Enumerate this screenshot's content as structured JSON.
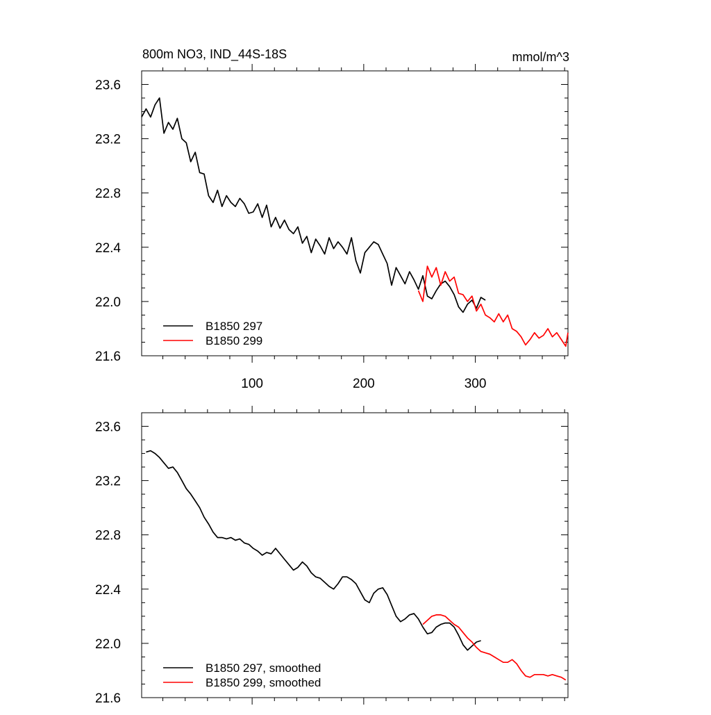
{
  "chart_data": [
    {
      "type": "line",
      "title": "800m NO3, IND_44S-18S",
      "units": "mmol/m^3",
      "xlim": [
        1,
        383
      ],
      "ylim": [
        21.6,
        23.7
      ],
      "xticks": [
        100,
        200,
        300
      ],
      "yticks": [
        21.6,
        22.0,
        22.4,
        22.8,
        23.2,
        23.6
      ],
      "ytick_labels": [
        "21.6",
        "22.0",
        "22.4",
        "22.8",
        "23.2",
        "23.6"
      ],
      "xtick_labels": [
        "100",
        "200",
        "300"
      ],
      "legend_position": "bottom-left",
      "series": [
        {
          "name": "B1850 297",
          "color": "#000000",
          "x": [
            1,
            5,
            9,
            13,
            17,
            21,
            25,
            29,
            33,
            37,
            41,
            45,
            49,
            53,
            57,
            61,
            65,
            69,
            73,
            77,
            81,
            85,
            89,
            93,
            97,
            101,
            105,
            109,
            113,
            117,
            121,
            125,
            129,
            133,
            137,
            141,
            145,
            149,
            153,
            157,
            161,
            165,
            169,
            173,
            177,
            181,
            185,
            189,
            193,
            197,
            201,
            205,
            209,
            213,
            217,
            221,
            225,
            229,
            233,
            237,
            241,
            245,
            249,
            253,
            257,
            261,
            265,
            269,
            273,
            277,
            281,
            285,
            289,
            293,
            297,
            301,
            305,
            309
          ],
          "values": [
            23.36,
            23.42,
            23.36,
            23.45,
            23.5,
            23.24,
            23.32,
            23.27,
            23.35,
            23.2,
            23.17,
            23.03,
            23.1,
            22.95,
            22.94,
            22.78,
            22.73,
            22.82,
            22.7,
            22.78,
            22.73,
            22.7,
            22.76,
            22.72,
            22.65,
            22.66,
            22.72,
            22.62,
            22.71,
            22.55,
            22.62,
            22.54,
            22.6,
            22.53,
            22.5,
            22.55,
            22.43,
            22.48,
            22.36,
            22.46,
            22.41,
            22.35,
            22.47,
            22.39,
            22.44,
            22.4,
            22.35,
            22.47,
            22.3,
            22.21,
            22.36,
            22.4,
            22.44,
            22.42,
            22.35,
            22.28,
            22.12,
            22.25,
            22.19,
            22.13,
            22.22,
            22.16,
            22.09,
            22.19,
            22.04,
            22.02,
            22.08,
            22.13,
            22.15,
            22.11,
            22.05,
            21.96,
            21.92,
            21.98,
            22.01,
            21.95,
            22.03,
            22.01
          ]
        },
        {
          "name": "B1850 299",
          "color": "#ff0000",
          "x": [
            249,
            253,
            257,
            261,
            265,
            269,
            273,
            277,
            281,
            285,
            289,
            293,
            297,
            301,
            305,
            309,
            313,
            317,
            321,
            325,
            329,
            333,
            337,
            341,
            345,
            349,
            353,
            357,
            361,
            365,
            369,
            373,
            377,
            381,
            383
          ],
          "values": [
            22.08,
            22.0,
            22.26,
            22.18,
            22.25,
            22.12,
            22.22,
            22.15,
            22.18,
            22.06,
            22.05,
            22.0,
            22.04,
            21.93,
            21.98,
            21.9,
            21.88,
            21.85,
            21.91,
            21.85,
            21.9,
            21.8,
            21.78,
            21.74,
            21.68,
            21.72,
            21.77,
            21.73,
            21.75,
            21.8,
            21.74,
            21.77,
            21.72,
            21.67,
            21.77
          ]
        }
      ]
    },
    {
      "type": "line",
      "xlim": [
        1,
        383
      ],
      "ylim": [
        21.6,
        23.7
      ],
      "xticks": [
        100,
        200,
        300
      ],
      "yticks": [
        21.6,
        22.0,
        22.4,
        22.8,
        23.2,
        23.6
      ],
      "ytick_labels": [
        "21.6",
        "22.0",
        "22.4",
        "22.8",
        "23.2",
        "23.6"
      ],
      "legend_position": "bottom-left",
      "series": [
        {
          "name": "B1850 297, smoothed",
          "color": "#000000",
          "x": [
            5,
            9,
            13,
            17,
            21,
            25,
            29,
            33,
            37,
            41,
            45,
            49,
            53,
            57,
            61,
            65,
            69,
            73,
            77,
            81,
            85,
            89,
            93,
            97,
            101,
            105,
            109,
            113,
            117,
            121,
            125,
            129,
            133,
            137,
            141,
            145,
            149,
            153,
            157,
            161,
            165,
            169,
            173,
            177,
            181,
            185,
            189,
            193,
            197,
            201,
            205,
            209,
            213,
            217,
            221,
            225,
            229,
            233,
            237,
            241,
            245,
            249,
            253,
            257,
            261,
            265,
            269,
            273,
            277,
            281,
            285,
            289,
            293,
            297,
            301,
            305
          ],
          "values": [
            23.41,
            23.42,
            23.4,
            23.37,
            23.33,
            23.29,
            23.3,
            23.26,
            23.2,
            23.14,
            23.1,
            23.05,
            23.0,
            22.93,
            22.88,
            22.82,
            22.78,
            22.78,
            22.77,
            22.78,
            22.76,
            22.77,
            22.74,
            22.73,
            22.7,
            22.68,
            22.65,
            22.67,
            22.66,
            22.7,
            22.66,
            22.62,
            22.58,
            22.54,
            22.56,
            22.6,
            22.57,
            22.52,
            22.49,
            22.48,
            22.45,
            22.42,
            22.4,
            22.44,
            22.49,
            22.49,
            22.47,
            22.44,
            22.38,
            22.32,
            22.3,
            22.37,
            22.4,
            22.41,
            22.36,
            22.28,
            22.2,
            22.16,
            22.18,
            22.21,
            22.22,
            22.18,
            22.12,
            22.07,
            22.08,
            22.12,
            22.14,
            22.15,
            22.15,
            22.12,
            22.06,
            21.99,
            21.95,
            21.98,
            22.01,
            22.02
          ]
        },
        {
          "name": "B1850 299, smoothed",
          "color": "#ff0000",
          "x": [
            253,
            257,
            261,
            265,
            269,
            273,
            277,
            281,
            285,
            289,
            293,
            297,
            301,
            305,
            309,
            313,
            317,
            321,
            325,
            329,
            333,
            337,
            341,
            345,
            349,
            353,
            357,
            361,
            365,
            369,
            373,
            377,
            381
          ],
          "values": [
            22.14,
            22.17,
            22.2,
            22.21,
            22.21,
            22.2,
            22.17,
            22.14,
            22.12,
            22.08,
            22.04,
            22.01,
            21.97,
            21.94,
            21.93,
            21.92,
            21.9,
            21.88,
            21.86,
            21.86,
            21.88,
            21.85,
            21.8,
            21.76,
            21.75,
            21.77,
            21.77,
            21.77,
            21.76,
            21.77,
            21.76,
            21.75,
            21.73
          ]
        }
      ]
    }
  ]
}
